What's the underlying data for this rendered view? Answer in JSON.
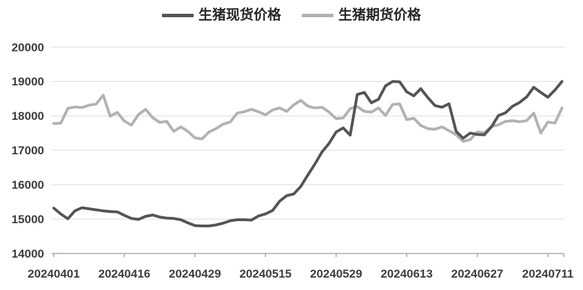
{
  "legend": {
    "spot_label": "生猪现货价格",
    "futures_label": "生猪期货价格"
  },
  "colors": {
    "spot_line": "#545454",
    "futures_line": "#b2b2b2",
    "gridline": "#d9d9d9",
    "axis_line": "#999999",
    "tick_text": "#3d3d3d"
  },
  "chart_data": {
    "type": "line",
    "title": "",
    "xlabel": "",
    "ylabel": "",
    "grid": "horizontal",
    "legend_position": "top",
    "ylim": [
      14000,
      20000
    ],
    "y_ticks": [
      14000,
      15000,
      16000,
      17000,
      18000,
      19000,
      20000
    ],
    "x_ticks": [
      {
        "index": 0,
        "label": "20240401"
      },
      {
        "index": 10,
        "label": "20240416"
      },
      {
        "index": 20,
        "label": "20240429"
      },
      {
        "index": 30,
        "label": "20240515"
      },
      {
        "index": 40,
        "label": "20240529"
      },
      {
        "index": 50,
        "label": "20240613"
      },
      {
        "index": 60,
        "label": "20240627"
      },
      {
        "index": 70,
        "label": "20240711"
      }
    ],
    "series": [
      {
        "name": "生猪现货价格",
        "color": "#545454",
        "values": [
          15320,
          15150,
          15010,
          15240,
          15330,
          15300,
          15270,
          15240,
          15220,
          15210,
          15110,
          15020,
          14990,
          15080,
          15120,
          15060,
          15030,
          15020,
          14980,
          14890,
          14810,
          14800,
          14800,
          14830,
          14880,
          14950,
          14980,
          14980,
          14970,
          15090,
          15150,
          15250,
          15520,
          15680,
          15730,
          15950,
          16280,
          16600,
          16950,
          17200,
          17530,
          17650,
          17440,
          18620,
          18680,
          18380,
          18480,
          18870,
          19000,
          18990,
          18700,
          18580,
          18790,
          18530,
          18300,
          18250,
          18350,
          17550,
          17350,
          17500,
          17460,
          17450,
          17680,
          18010,
          18090,
          18280,
          18390,
          18550,
          18830,
          18680,
          18540,
          18750,
          19000
        ]
      },
      {
        "name": "生猪期货价格",
        "color": "#b2b2b2",
        "values": [
          17780,
          17790,
          18220,
          18260,
          18240,
          18310,
          18340,
          18600,
          17990,
          18100,
          17850,
          17730,
          18040,
          18190,
          17950,
          17810,
          17840,
          17550,
          17680,
          17550,
          17360,
          17330,
          17530,
          17630,
          17760,
          17820,
          18080,
          18120,
          18190,
          18120,
          18030,
          18170,
          18230,
          18130,
          18320,
          18450,
          18280,
          18230,
          18250,
          18110,
          17920,
          17940,
          18210,
          18270,
          18130,
          18110,
          18230,
          18010,
          18330,
          18350,
          17890,
          17930,
          17720,
          17630,
          17610,
          17680,
          17570,
          17450,
          17260,
          17310,
          17530,
          17510,
          17690,
          17740,
          17840,
          17860,
          17830,
          17860,
          18080,
          17500,
          17820,
          17790,
          18230
        ]
      }
    ]
  }
}
